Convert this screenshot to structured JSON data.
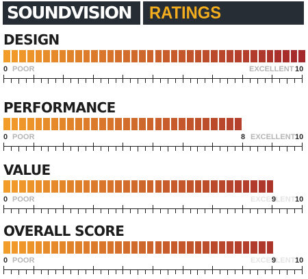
{
  "header": {
    "brand": "SOUNDVISION",
    "title": "RATINGS"
  },
  "scale": {
    "min": 0,
    "max": 10,
    "segments_per_bar": 38
  },
  "colors": {
    "gradient_start": "#f29c2a",
    "gradient_end": "#a4282c",
    "header_bg": "#262d34",
    "title_accent": "#f3ad1e"
  },
  "ratings": [
    {
      "title": "DESIGN",
      "score": 10,
      "min_label": "0",
      "poor_label": "POOR",
      "excellent_label": "EXCELLENT",
      "max_label": "10",
      "score_label": ""
    },
    {
      "title": "PERFORMANCE",
      "score": 8,
      "min_label": "0",
      "poor_label": "POOR",
      "excellent_label": "EXCELLENT",
      "max_label": "10",
      "score_label": "8"
    },
    {
      "title": "VALUE",
      "score": 9,
      "min_label": "0",
      "poor_label": "POOR",
      "excellent_label": "EXCELLENT",
      "max_label": "10",
      "score_label": "9"
    },
    {
      "title": "OVERALL SCORE",
      "score": 9,
      "min_label": "0",
      "poor_label": "POOR",
      "excellent_label": "EXCELLENT",
      "max_label": "10",
      "score_label": "9"
    }
  ]
}
